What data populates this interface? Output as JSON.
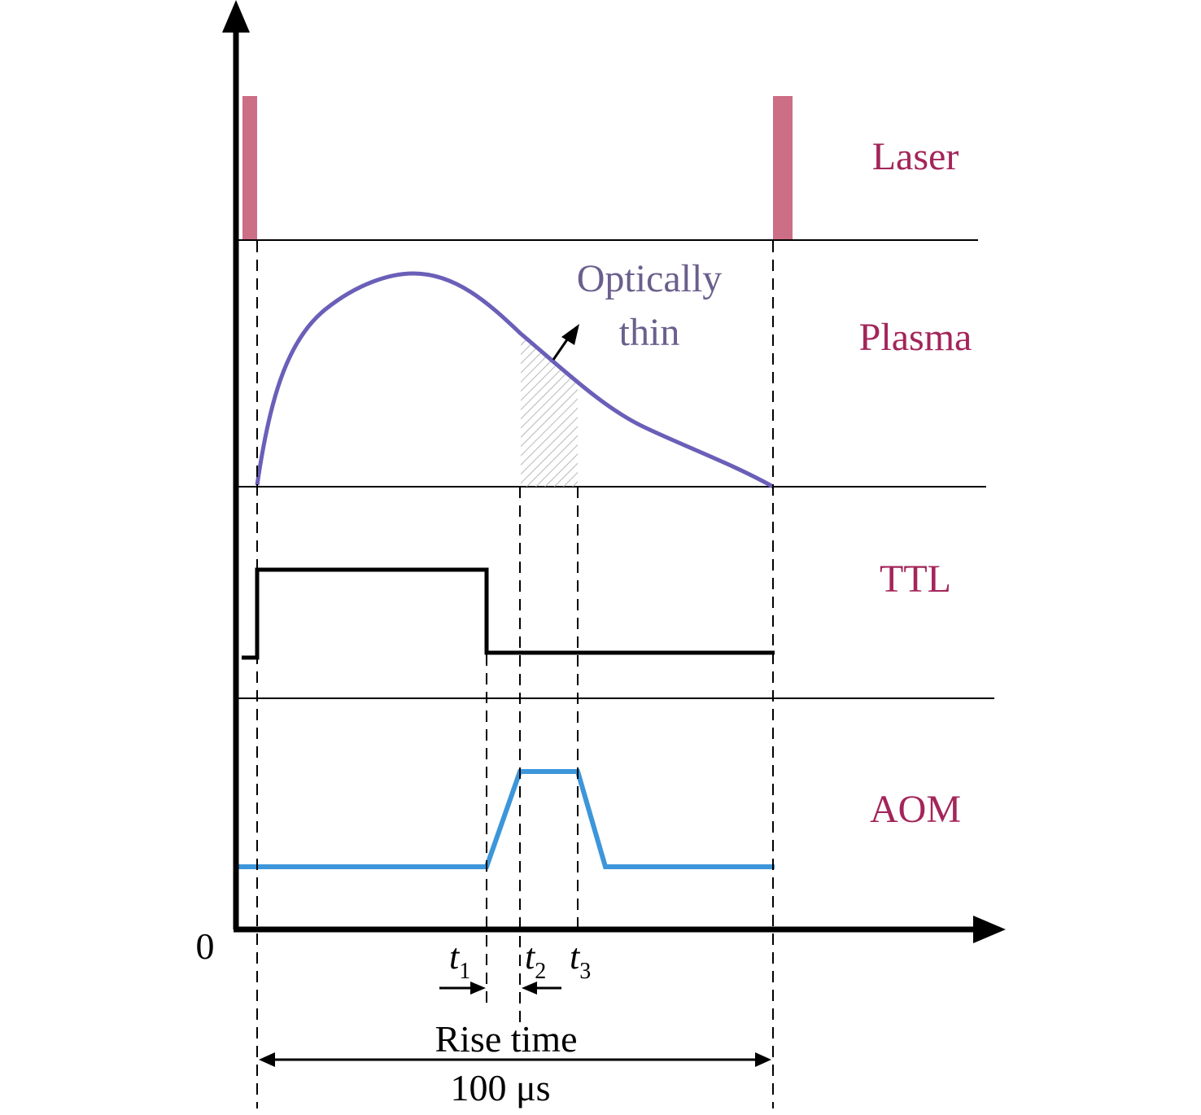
{
  "rows": {
    "laser": "Laser",
    "plasma": "Plasma",
    "ttl": "TTL",
    "aom": "AOM"
  },
  "annotation": {
    "line1": "Optically",
    "line2": "thin"
  },
  "axis": {
    "origin": "0"
  },
  "times": [
    {
      "main": "t",
      "sub": "1"
    },
    {
      "main": "t",
      "sub": "2"
    },
    {
      "main": "t",
      "sub": "3"
    }
  ],
  "rise_time_label": "Rise time",
  "period_label": "100 μs",
  "colors": {
    "label": "#a3255a",
    "laser_pulse": "#cc6e86",
    "plasma_curve": "#6a5fb8",
    "annotation_text": "#6a5f8c",
    "aom_trace": "#3d96da",
    "ttl_trace": "#000000",
    "hatch": "#b8b8b8"
  }
}
